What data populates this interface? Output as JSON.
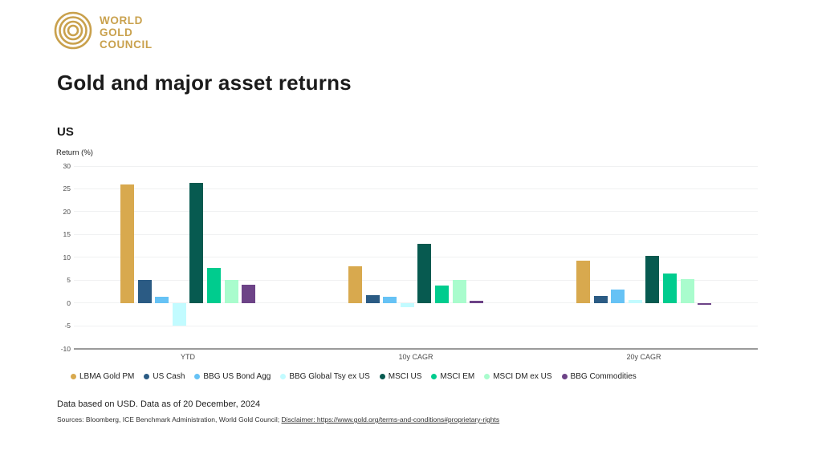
{
  "logo": {
    "line1": "WORLD",
    "line2": "GOLD",
    "line3": "COUNCIL",
    "color": "#C9A14D"
  },
  "page_title": "Gold and major asset returns",
  "region_label": "US",
  "chart_data": {
    "type": "bar",
    "title": "Gold and major asset returns",
    "subtitle": "US",
    "ylabel": "Return (%)",
    "ylim": [
      -10,
      30
    ],
    "yticks": [
      30,
      25,
      20,
      15,
      10,
      5,
      0,
      -5,
      -10
    ],
    "grid": true,
    "legend_position": "bottom",
    "categories": [
      "YTD",
      "10y CAGR",
      "20y CAGR"
    ],
    "series": [
      {
        "name": "LBMA Gold PM",
        "color": "#D8A94E",
        "values": [
          26.0,
          8.0,
          9.2
        ]
      },
      {
        "name": "US Cash",
        "color": "#2B5B84",
        "values": [
          5.1,
          1.7,
          1.6
        ]
      },
      {
        "name": "BBG US Bond Agg",
        "color": "#66C2F5",
        "values": [
          1.3,
          1.4,
          2.9
        ]
      },
      {
        "name": "BBG Global Tsy ex US",
        "color": "#C2FBFF",
        "values": [
          -4.9,
          -1.0,
          0.6
        ]
      },
      {
        "name": "MSCI US",
        "color": "#075A50",
        "values": [
          26.3,
          13.0,
          10.4
        ]
      },
      {
        "name": "MSCI EM",
        "color": "#00CC8E",
        "values": [
          7.7,
          3.9,
          6.5
        ]
      },
      {
        "name": "MSCI DM ex US",
        "color": "#A9FCCD",
        "values": [
          5.1,
          5.0,
          5.3
        ]
      },
      {
        "name": "BBG Commodities",
        "color": "#6D4387",
        "values": [
          4.0,
          0.5,
          -0.4
        ]
      }
    ]
  },
  "footer": {
    "data_note": "Data based on USD. Data as of 20 December, 2024",
    "sources_prefix": "Sources: Bloomberg, ICE Benchmark Administration, World Gold Council; ",
    "disclaimer_link": "Disclaimer: https://www.gold.org/terms-and-conditions#proprietary-rights"
  }
}
